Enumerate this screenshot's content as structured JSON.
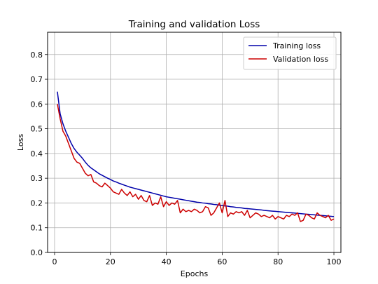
{
  "chart_data": {
    "type": "line",
    "title": "Training and validation Loss",
    "xlabel": "Epochs",
    "ylabel": "Loss",
    "xlim": [
      -2.5,
      102.5
    ],
    "ylim": [
      0.0,
      0.89
    ],
    "xticks": [
      0,
      20,
      40,
      60,
      80,
      100
    ],
    "yticks": [
      0.0,
      0.1,
      0.2,
      0.3,
      0.4,
      0.5,
      0.6,
      0.7,
      0.8
    ],
    "grid": true,
    "legend_position": "top-right",
    "series": [
      {
        "name": "Training loss",
        "color": "#0000aa",
        "values": [
          0.65,
          0.56,
          0.52,
          0.49,
          0.465,
          0.44,
          0.42,
          0.405,
          0.393,
          0.38,
          0.365,
          0.352,
          0.342,
          0.334,
          0.326,
          0.318,
          0.312,
          0.306,
          0.3,
          0.295,
          0.289,
          0.285,
          0.28,
          0.276,
          0.272,
          0.268,
          0.264,
          0.261,
          0.258,
          0.255,
          0.252,
          0.249,
          0.246,
          0.243,
          0.24,
          0.237,
          0.234,
          0.231,
          0.228,
          0.225,
          0.223,
          0.221,
          0.219,
          0.217,
          0.215,
          0.213,
          0.211,
          0.209,
          0.207,
          0.205,
          0.203,
          0.202,
          0.2,
          0.199,
          0.197,
          0.196,
          0.194,
          0.193,
          0.191,
          0.19,
          0.188,
          0.187,
          0.185,
          0.184,
          0.182,
          0.181,
          0.18,
          0.178,
          0.177,
          0.176,
          0.175,
          0.174,
          0.173,
          0.172,
          0.17,
          0.169,
          0.168,
          0.167,
          0.166,
          0.165,
          0.164,
          0.163,
          0.162,
          0.161,
          0.16,
          0.159,
          0.158,
          0.157,
          0.156,
          0.155,
          0.154,
          0.153,
          0.152,
          0.151,
          0.15,
          0.149,
          0.148,
          0.147,
          0.146,
          0.145
        ]
      },
      {
        "name": "Validation loss",
        "color": "#cc0000",
        "values": [
          0.6,
          0.54,
          0.49,
          0.47,
          0.44,
          0.41,
          0.38,
          0.365,
          0.36,
          0.34,
          0.32,
          0.31,
          0.315,
          0.285,
          0.28,
          0.27,
          0.265,
          0.28,
          0.27,
          0.26,
          0.245,
          0.24,
          0.235,
          0.255,
          0.24,
          0.23,
          0.245,
          0.225,
          0.235,
          0.215,
          0.23,
          0.21,
          0.205,
          0.23,
          0.19,
          0.2,
          0.195,
          0.225,
          0.185,
          0.205,
          0.19,
          0.2,
          0.195,
          0.21,
          0.16,
          0.175,
          0.165,
          0.17,
          0.165,
          0.175,
          0.17,
          0.16,
          0.165,
          0.185,
          0.18,
          0.15,
          0.16,
          0.18,
          0.2,
          0.16,
          0.21,
          0.145,
          0.16,
          0.155,
          0.165,
          0.16,
          0.165,
          0.15,
          0.17,
          0.14,
          0.15,
          0.16,
          0.155,
          0.145,
          0.15,
          0.145,
          0.14,
          0.15,
          0.135,
          0.145,
          0.14,
          0.135,
          0.15,
          0.145,
          0.155,
          0.15,
          0.16,
          0.125,
          0.13,
          0.155,
          0.15,
          0.14,
          0.135,
          0.16,
          0.15,
          0.145,
          0.14,
          0.15,
          0.13,
          0.135
        ]
      }
    ]
  }
}
